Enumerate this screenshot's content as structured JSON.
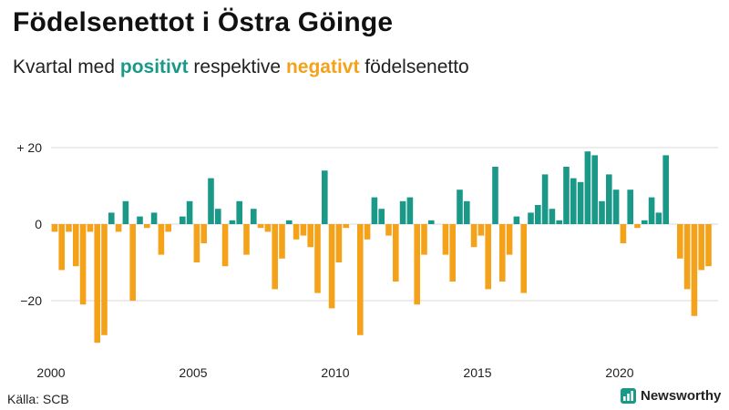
{
  "title": "Födelsenettot i Östra Göinge",
  "subtitle": {
    "prefix": "Kvartal med ",
    "positive_word": "positivt",
    "middle": " respektive ",
    "negative_word": "negativt",
    "suffix": " födelsenetto"
  },
  "source": "Källa: SCB",
  "brand": {
    "name": "Newsworthy",
    "icon": "bar-chart-icon"
  },
  "colors": {
    "positive": "#1a9988",
    "negative": "#f5a21b",
    "grid": "#d9d9d9",
    "text": "#222222"
  },
  "chart_data": {
    "type": "bar",
    "start_year": 2000,
    "start_quarter": 1,
    "values": [
      -2,
      -12,
      -2,
      -11,
      -21,
      -2,
      -31,
      -29,
      3,
      -2,
      6,
      -20,
      2,
      -1,
      3,
      -8,
      -2,
      0,
      2,
      6,
      -10,
      -5,
      12,
      4,
      -11,
      1,
      6,
      -8,
      4,
      -1,
      -2,
      -17,
      -9,
      1,
      -4,
      -3,
      -6,
      -18,
      14,
      -22,
      -10,
      -1,
      0,
      -29,
      -4,
      7,
      4,
      -3,
      -15,
      6,
      7,
      -21,
      -8,
      1,
      0,
      -8,
      -15,
      9,
      6,
      -6,
      -3,
      -17,
      15,
      -15,
      -8,
      2,
      -18,
      3,
      5,
      13,
      4,
      1,
      15,
      12,
      11,
      19,
      18,
      6,
      13,
      9,
      -5,
      9,
      -1,
      1,
      7,
      3,
      18,
      0,
      -9,
      -17,
      -24,
      -12,
      -11
    ],
    "yticks": [
      20,
      0,
      -20
    ],
    "ytick_labels": [
      "+ 20",
      "0",
      "−20"
    ],
    "xticks": [
      2000,
      2005,
      2010,
      2015,
      2020
    ],
    "ylim": [
      -33,
      23
    ],
    "grid": true
  }
}
